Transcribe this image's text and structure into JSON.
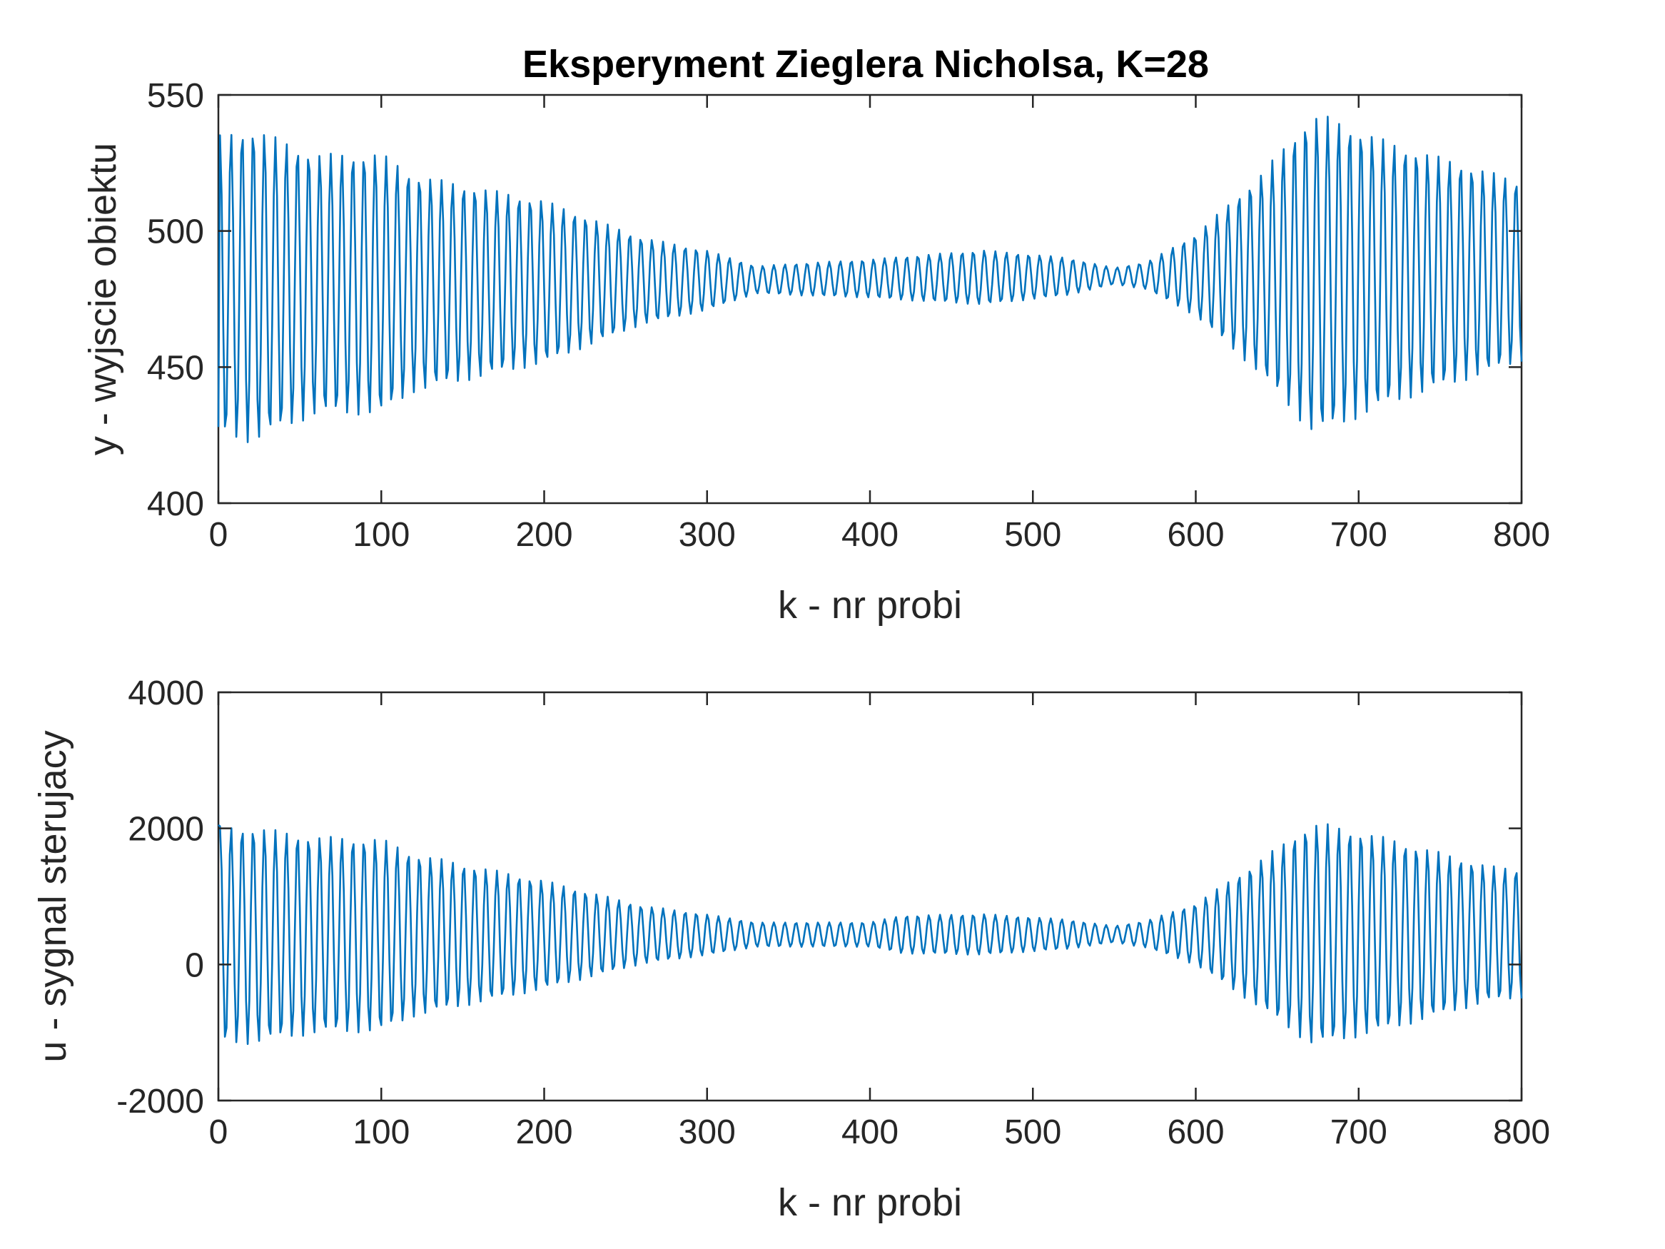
{
  "figure": {
    "title": "Eksperyment Zieglera Nicholsa, K=28"
  },
  "chart_data": [
    {
      "type": "line",
      "title": "Eksperyment Zieglera Nicholsa, K=28",
      "xlabel": "k - nr probi",
      "ylabel": "y - wyjscie obiektu",
      "xlim": [
        0,
        800
      ],
      "ylim": [
        400,
        550
      ],
      "xticks": [
        0,
        100,
        200,
        300,
        400,
        500,
        600,
        700,
        800
      ],
      "yticks": [
        400,
        450,
        500,
        550
      ],
      "grid": false,
      "line_color": "#0072BD",
      "signal": {
        "period": 6.8,
        "center": [
          [
            0,
            480
          ],
          [
            800,
            485
          ]
        ],
        "amplitude_envelope": [
          [
            0,
            55
          ],
          [
            20,
            58
          ],
          [
            60,
            48
          ],
          [
            100,
            48
          ],
          [
            120,
            40
          ],
          [
            200,
            30
          ],
          [
            260,
            16
          ],
          [
            300,
            11
          ],
          [
            330,
            5
          ],
          [
            360,
            6
          ],
          [
            400,
            7
          ],
          [
            420,
            8
          ],
          [
            470,
            10
          ],
          [
            520,
            7
          ],
          [
            550,
            3
          ],
          [
            570,
            5
          ],
          [
            600,
            15
          ],
          [
            640,
            37
          ],
          [
            670,
            58
          ],
          [
            680,
            58
          ],
          [
            720,
            48
          ],
          [
            780,
            37
          ],
          [
            800,
            33
          ]
        ],
        "start_value": 428
      }
    },
    {
      "type": "line",
      "title": "",
      "xlabel": "k - nr probi",
      "ylabel": "u - sygnal sterujacy",
      "xlim": [
        0,
        800
      ],
      "ylim": [
        -2000,
        4000
      ],
      "xticks": [
        0,
        100,
        200,
        300,
        400,
        500,
        600,
        700,
        800
      ],
      "yticks": [
        -2000,
        0,
        2000,
        4000
      ],
      "grid": false,
      "line_color": "#0072BD",
      "signal": {
        "period": 6.8,
        "center": [
          [
            0,
            430
          ],
          [
            800,
            450
          ]
        ],
        "amplitude_envelope": [
          [
            0,
            1600
          ],
          [
            20,
            1600
          ],
          [
            60,
            1450
          ],
          [
            100,
            1420
          ],
          [
            120,
            1200
          ],
          [
            200,
            800
          ],
          [
            260,
            430
          ],
          [
            300,
            300
          ],
          [
            330,
            180
          ],
          [
            360,
            180
          ],
          [
            400,
            180
          ],
          [
            420,
            280
          ],
          [
            470,
            300
          ],
          [
            520,
            220
          ],
          [
            550,
            120
          ],
          [
            570,
            200
          ],
          [
            600,
            450
          ],
          [
            640,
            1100
          ],
          [
            670,
            1620
          ],
          [
            680,
            1620
          ],
          [
            720,
            1400
          ],
          [
            780,
            1000
          ],
          [
            800,
            950
          ]
        ],
        "start_value": 2050
      }
    }
  ]
}
